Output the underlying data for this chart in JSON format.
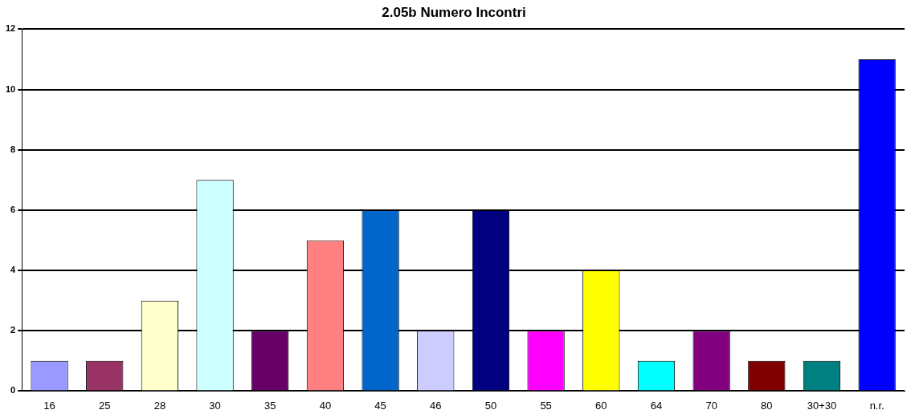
{
  "chart_data": {
    "type": "bar",
    "title": "2.05b Numero Incontri",
    "categories": [
      "16",
      "25",
      "28",
      "30",
      "35",
      "40",
      "45",
      "46",
      "50",
      "55",
      "60",
      "64",
      "70",
      "80",
      "30+30",
      "n.r."
    ],
    "values": [
      1,
      1,
      3,
      7,
      2,
      5,
      6,
      2,
      6,
      2,
      4,
      1,
      2,
      1,
      1,
      11
    ],
    "colors": [
      "#9999ff",
      "#993366",
      "#ffffcc",
      "#ccffff",
      "#660066",
      "#ff8080",
      "#0066cc",
      "#ccccff",
      "#000080",
      "#ff00ff",
      "#ffff00",
      "#00ffff",
      "#800080",
      "#800000",
      "#008080",
      "#0000ff"
    ],
    "ylim": [
      0,
      12
    ],
    "yticks": [
      0,
      2,
      4,
      6,
      8,
      10,
      12
    ],
    "grid": "y"
  }
}
